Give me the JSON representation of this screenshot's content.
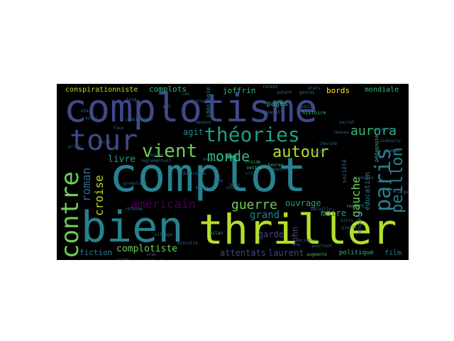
{
  "palette": {
    "purple_dark": "#440154",
    "indigo": "#3e4989",
    "slate": "#31688e",
    "teal": "#26828e",
    "green_teal": "#1f9e89",
    "green": "#35b779",
    "lime": "#6ece58",
    "yellow_green": "#b5de2b",
    "yellow": "#fde725"
  },
  "words": {
    "complotisme": "complotisme",
    "complot": "complot",
    "thriller": "thriller",
    "bien": "bien",
    "tour": "tour",
    "theories": "théories",
    "vient": "vient",
    "contre": "contre",
    "paris": "paris",
    "aurora": "aurora",
    "autour": "autour",
    "monde": "monde",
    "americain": "américain",
    "guerre": "guerre",
    "gauche": "gauche",
    "peillon": "peillon",
    "roman": "roman",
    "croise": "croise",
    "livre": "livre",
    "agit": "agit",
    "grand": "grand",
    "ouvrage": "ouvrage",
    "maire": "maire",
    "john": "john",
    "garde": "garde",
    "complotiste": "complotiste",
    "fiction": "fiction",
    "attentats": "attentats",
    "laurent": "laurent",
    "politique": "politique",
    "film": "film",
    "conspirationniste": "conspirationniste",
    "complots": "complots",
    "joffrin": "joffrin",
    "bords": "bords",
    "mondiale": "mondiale",
    "pages": "pages",
    "education": "éducation",
    "societe": "société",
    "histoire": "histoire",
    "ideologie": "idéologie",
    "public": "public",
    "etats": "etats",
    "genres": "genres",
    "autant": "autant",
    "relent": "relent",
    "renfort": "renfort",
    "combinaison": "combinaison",
    "reglementent": "reglementent",
    "dominique": "dominique",
    "augmente": "augmenté",
    "science": "science",
    "bilan": "bilan",
    "heures": "heures",
    "mettre": "mettre",
    "froide": "froide",
    "bataille": "bataille",
    "difficilement": "difficilement",
    "greenland": "greenland",
    "ministre": "ministre",
    "pedagogie": "pédagogie",
    "enquete": "enquête",
    "crise": "crise",
    "reforme": "réforme",
    "apparait": "apparaît",
    "chimique": "chimique",
    "suivi": "suivi",
    "ete": "été",
    "recit": "récit",
    "nouvelle": "nouvelle",
    "pourtant": "pourtant",
    "menace": "menace",
    "doute": "doute",
    "caractere": "caractère",
    "cherche": "cherche",
    "secret": "secret",
    "reseau": "réseau",
    "zone": "zone",
    "bruno": "bruno",
    "vrai": "vrai",
    "sujet": "sujet",
    "long": "long",
    "scenario": "scénario",
    "cas": "cas",
    "voix": "voix",
    "mot": "mot",
    "prise": "prise",
    "menee": "menée",
    "large": "large",
    "rapport": "rapport",
    "pierre": "pierre",
    "faux": "faux",
    "grands": "grands",
    "mois": "mois",
    "ensuite": "ensuite",
    "alors": "alors",
    "village": "village"
  }
}
